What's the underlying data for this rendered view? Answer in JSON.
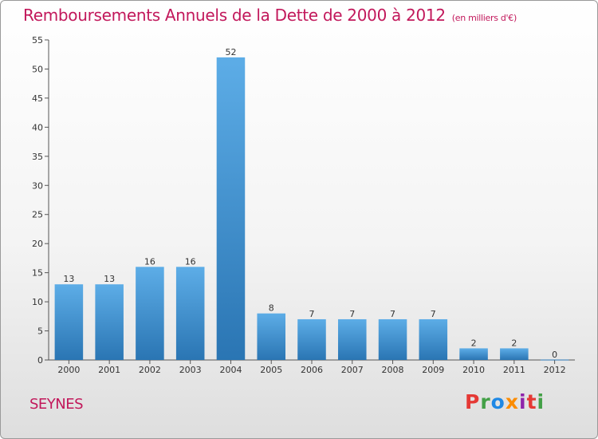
{
  "title": "Remboursements Annuels de la Dette de 2000 à 2012",
  "unit_note": "(en milliers d'€)",
  "commune": "SEYNES",
  "logo": {
    "text": "Proxiti",
    "letters": [
      {
        "ch": "P",
        "color": "#e53935"
      },
      {
        "ch": "r",
        "color": "#43a047"
      },
      {
        "ch": "o",
        "color": "#1e88e5"
      },
      {
        "ch": "x",
        "color": "#fb8c00"
      },
      {
        "ch": "i",
        "color": "#8e24aa"
      },
      {
        "ch": "t",
        "color": "#e53935"
      },
      {
        "ch": "i",
        "color": "#43a047"
      }
    ]
  },
  "colors": {
    "bar_top": "#5dade7",
    "bar_bottom": "#2a75b3",
    "accent": "#c2185b"
  },
  "chart_data": {
    "type": "bar",
    "categories": [
      "2000",
      "2001",
      "2002",
      "2003",
      "2004",
      "2005",
      "2006",
      "2007",
      "2008",
      "2009",
      "2010",
      "2011",
      "2012"
    ],
    "values": [
      13,
      13,
      16,
      16,
      52,
      8,
      7,
      7,
      7,
      7,
      2,
      2,
      0
    ],
    "title": "Remboursements Annuels de la Dette de 2000 à 2012",
    "xlabel": "",
    "ylabel": "",
    "ylim": [
      0,
      55
    ],
    "yticks": [
      0,
      5,
      10,
      15,
      20,
      25,
      30,
      35,
      40,
      45,
      50,
      55
    ],
    "grid": false,
    "data_labels": true
  }
}
